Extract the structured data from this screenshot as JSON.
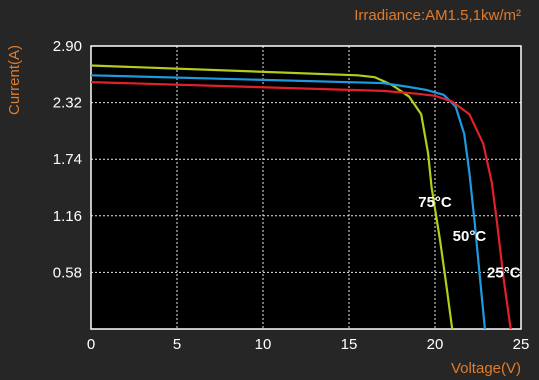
{
  "chart_data": {
    "type": "line",
    "note": "Irradiance:AM1.5,1kw/m²",
    "xlabel": "Voltage(V)",
    "ylabel": "Current(A)",
    "xlim": [
      0,
      25
    ],
    "ylim": [
      0,
      2.9
    ],
    "x_ticks": [
      0,
      5,
      10,
      15,
      20,
      25
    ],
    "y_ticks": [
      0.58,
      1.16,
      1.74,
      2.32,
      2.9
    ],
    "y_tick_labels": [
      "0.58",
      "1.16",
      "1.74",
      "2.32",
      "2.90"
    ],
    "grid": true,
    "series": [
      {
        "name": "75°C",
        "color": "#b5cc1a",
        "points": [
          [
            0,
            2.7
          ],
          [
            15.5,
            2.6
          ],
          [
            16.5,
            2.58
          ],
          [
            17.5,
            2.5
          ],
          [
            18.5,
            2.38
          ],
          [
            19.2,
            2.2
          ],
          [
            19.6,
            1.8
          ],
          [
            19.8,
            1.45
          ],
          [
            20.3,
            0.9
          ],
          [
            20.7,
            0.4
          ],
          [
            21.0,
            0.0
          ]
        ]
      },
      {
        "name": "50°C",
        "color": "#1e9be0",
        "points": [
          [
            0,
            2.6
          ],
          [
            17,
            2.52
          ],
          [
            18.5,
            2.48
          ],
          [
            19.5,
            2.45
          ],
          [
            20.5,
            2.4
          ],
          [
            21.2,
            2.28
          ],
          [
            21.7,
            2.0
          ],
          [
            22.0,
            1.6
          ],
          [
            22.3,
            1.1
          ],
          [
            22.6,
            0.55
          ],
          [
            22.9,
            0.0
          ]
        ]
      },
      {
        "name": "25°C",
        "color": "#e0202a",
        "points": [
          [
            0,
            2.53
          ],
          [
            17,
            2.44
          ],
          [
            19,
            2.41
          ],
          [
            20,
            2.39
          ],
          [
            21,
            2.33
          ],
          [
            22,
            2.2
          ],
          [
            22.8,
            1.9
          ],
          [
            23.3,
            1.5
          ],
          [
            23.6,
            1.1
          ],
          [
            24.0,
            0.5
          ],
          [
            24.4,
            0.0
          ]
        ]
      }
    ],
    "annotations": [
      {
        "text": "75°C",
        "x": 20.0,
        "y": 1.25
      },
      {
        "text": "50°C",
        "x": 22.0,
        "y": 0.9
      },
      {
        "text": "25°C",
        "x": 24.0,
        "y": 0.53
      }
    ]
  }
}
